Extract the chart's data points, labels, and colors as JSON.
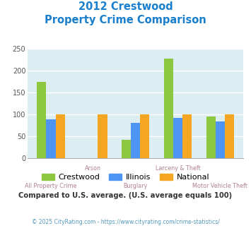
{
  "title_line1": "2012 Crestwood",
  "title_line2": "Property Crime Comparison",
  "categories": [
    "All Property Crime",
    "Arson",
    "Burglary",
    "Larceny & Theft",
    "Motor Vehicle Theft"
  ],
  "crestwood": [
    175,
    0,
    42,
    228,
    96
  ],
  "illinois": [
    90,
    0,
    82,
    93,
    85
  ],
  "national": [
    100,
    100,
    100,
    100,
    100
  ],
  "color_crestwood": "#8dc63f",
  "color_illinois": "#4d94f5",
  "color_national": "#f5a623",
  "bg_color": "#ddeef3",
  "title_color": "#1a7fcc",
  "xlabel_color": "#b08090",
  "footnote_color": "#333333",
  "copyright_color": "#5599bb",
  "ylim": [
    0,
    250
  ],
  "yticks": [
    0,
    50,
    100,
    150,
    200,
    250
  ],
  "bar_width": 0.22,
  "legend_labels": [
    "Crestwood",
    "Illinois",
    "National"
  ],
  "footnote": "Compared to U.S. average. (U.S. average equals 100)",
  "copyright": "© 2025 CityRating.com - https://www.cityrating.com/crime-statistics/"
}
